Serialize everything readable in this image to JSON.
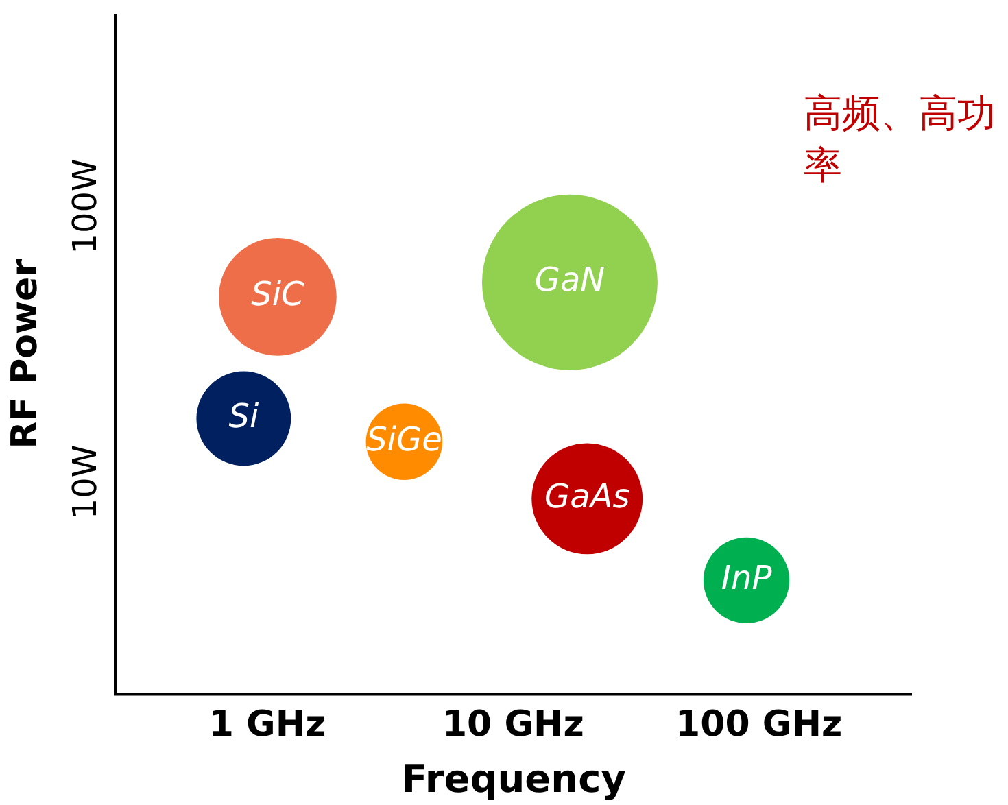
{
  "chart_data": {
    "type": "bubble",
    "xlabel": "Frequency",
    "ylabel": "RF Power",
    "log": "xy",
    "grid": false,
    "xlim": [
      0.24,
      420
    ],
    "xticks": [
      {
        "value": 1,
        "label": "1 GHz"
      },
      {
        "value": 10,
        "label": "10 GHz"
      },
      {
        "value": 100,
        "label": "100 GHz"
      }
    ],
    "ylim": [
      1.7,
      500
    ],
    "yticks": [
      {
        "value": 10,
        "label": "10W"
      },
      {
        "value": 100,
        "label": "100W"
      }
    ],
    "annotations": [
      "高频、高功率"
    ],
    "series": [
      {
        "name": "SiC",
        "color": "#ee6e4a",
        "x": [
          1.1
        ],
        "values": [
          47
        ],
        "sizes": [
          0.45
        ]
      },
      {
        "name": "GaN",
        "color": "#92d050",
        "x": [
          17
        ],
        "values": [
          53
        ],
        "sizes": [
          1
        ]
      },
      {
        "name": "Si",
        "color": "#002060",
        "x": [
          0.8
        ],
        "values": [
          17
        ],
        "sizes": [
          0.29
        ]
      },
      {
        "name": "SiGe",
        "color": "#ff8c00",
        "x": [
          3.6
        ],
        "values": [
          14
        ],
        "sizes": [
          0.19
        ]
      },
      {
        "name": "GaAs",
        "color": "#c00000",
        "x": [
          20
        ],
        "values": [
          8.7
        ],
        "sizes": [
          0.4
        ]
      },
      {
        "name": "InP",
        "color": "#00b050",
        "x": [
          89
        ],
        "values": [
          4.4
        ],
        "sizes": [
          0.24
        ]
      }
    ]
  }
}
